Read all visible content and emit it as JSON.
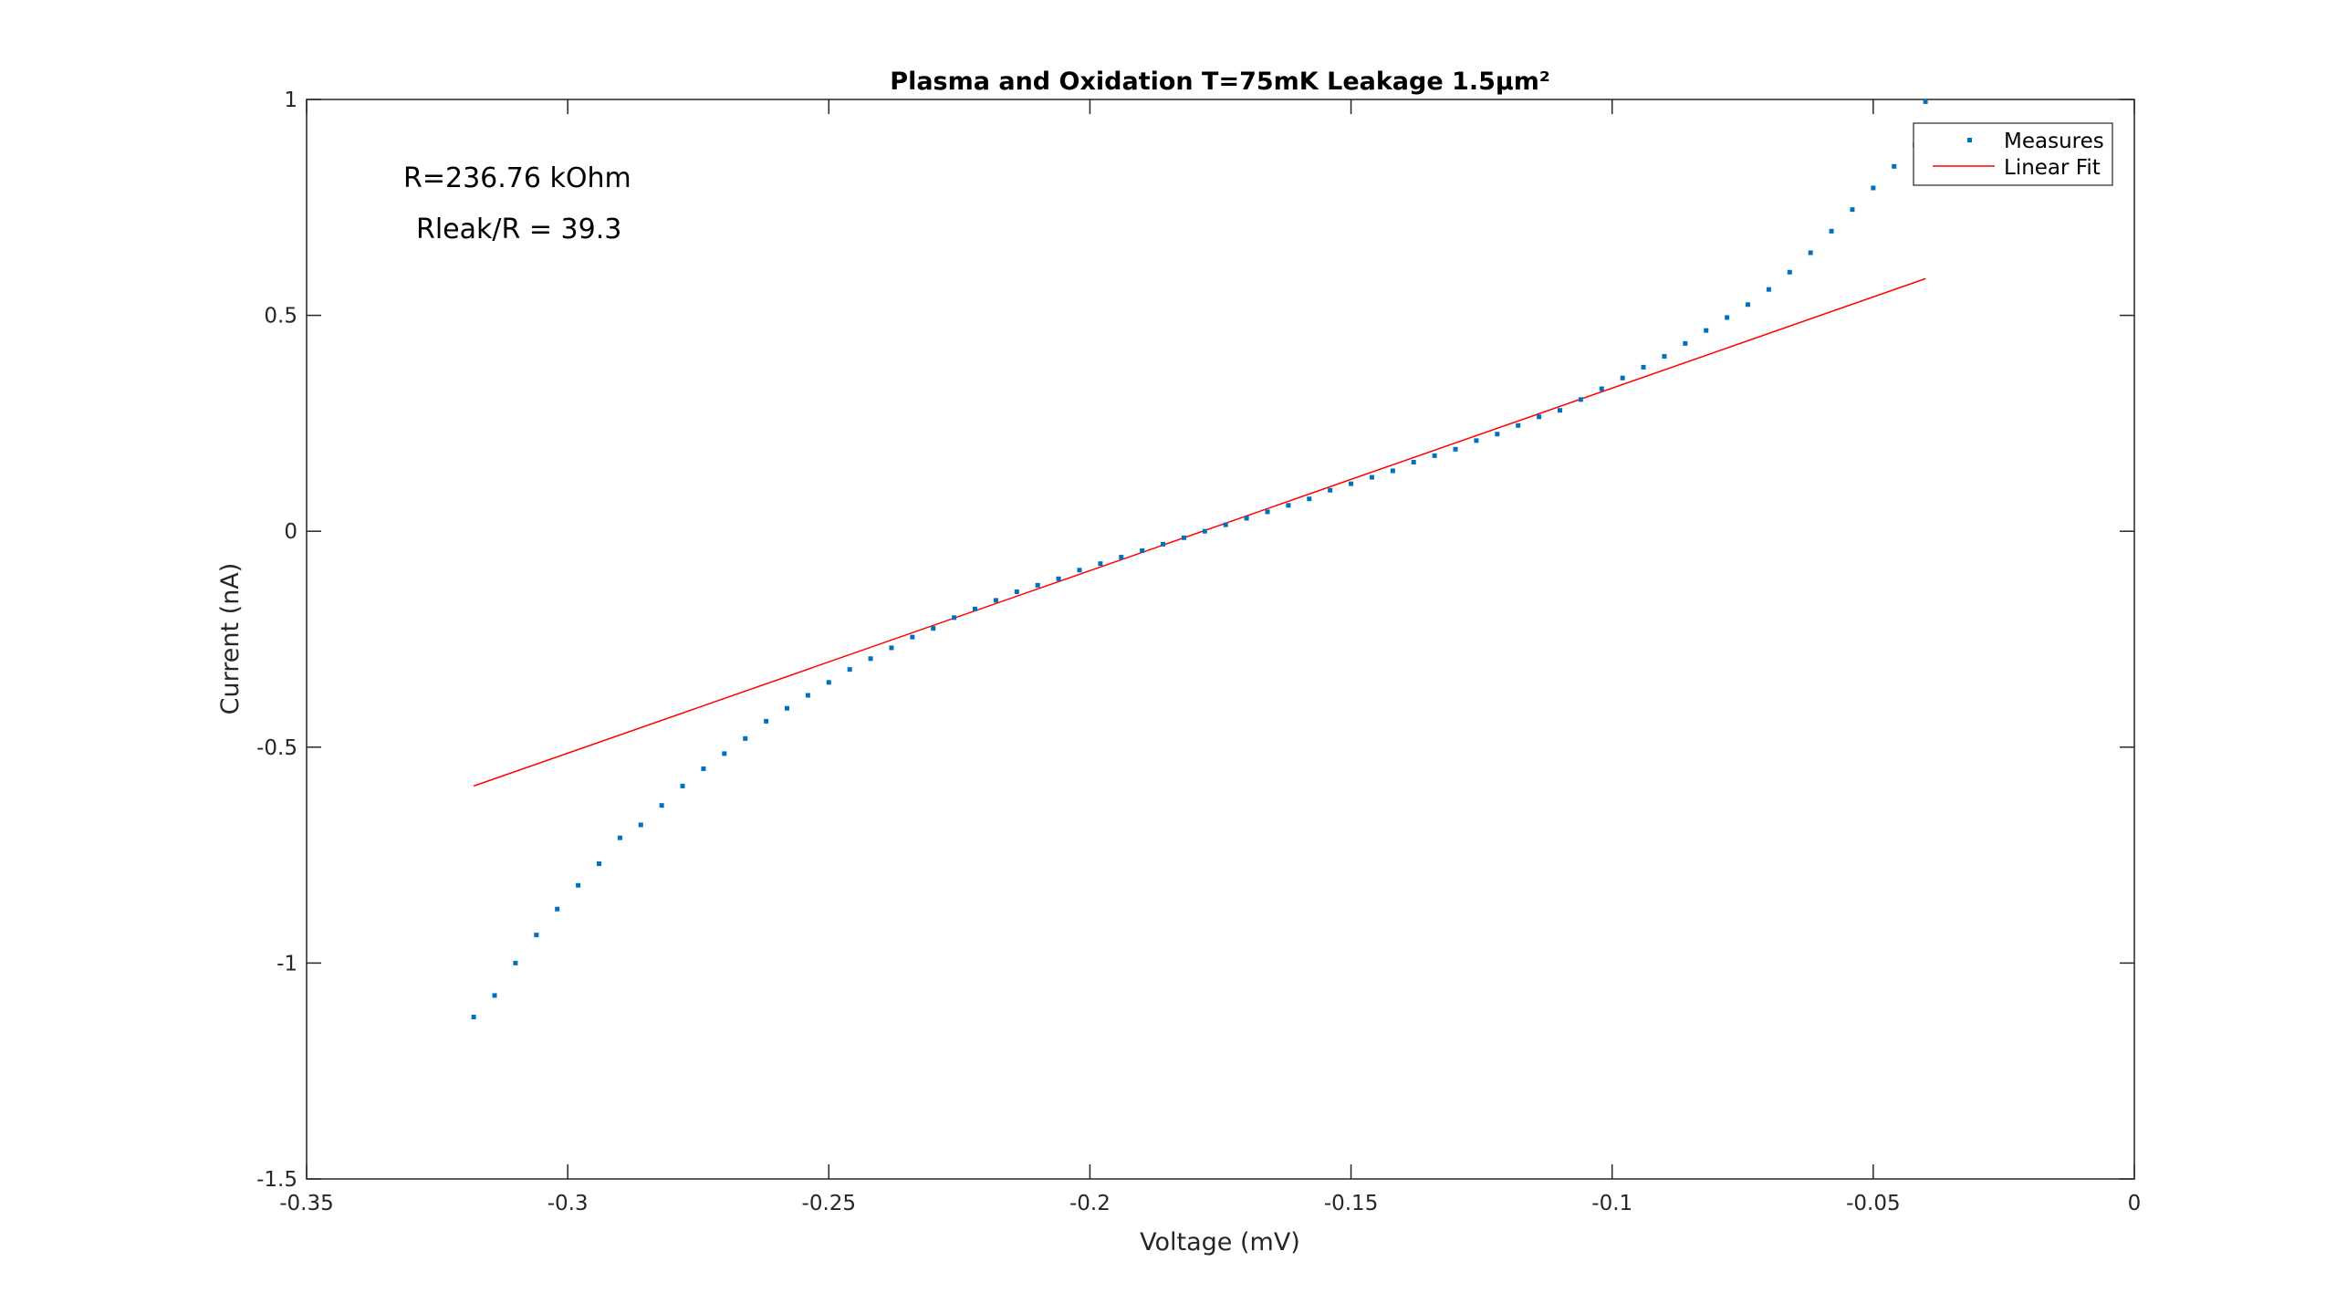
{
  "chart_data": {
    "type": "scatter",
    "title": "Plasma and Oxidation T=75mK Leakage 1.5µm²",
    "xlabel": "Voltage (mV)",
    "ylabel": "Current (nA)",
    "xlim": [
      -0.35,
      0
    ],
    "ylim": [
      -1.5,
      1
    ],
    "xticks": [
      -0.35,
      -0.3,
      -0.25,
      -0.2,
      -0.15,
      -0.1,
      -0.05,
      0
    ],
    "xtick_labels": [
      "-0.35",
      "-0.3",
      "-0.25",
      "-0.2",
      "-0.15",
      "-0.1",
      "-0.05",
      "0"
    ],
    "yticks": [
      -1.5,
      -1,
      -0.5,
      0,
      0.5,
      1
    ],
    "ytick_labels": [
      "-1.5",
      "-1",
      "-0.5",
      "0",
      "0.5",
      "1"
    ],
    "grid": false,
    "legend_position": "top-right",
    "annotations": [
      "R=236.76 kOhm",
      "Rleak/R = 39.3"
    ],
    "series": [
      {
        "name": "Measures",
        "style": "points",
        "color": "#0072BD",
        "x": [
          -0.318,
          -0.314,
          -0.31,
          -0.306,
          -0.302,
          -0.298,
          -0.294,
          -0.29,
          -0.286,
          -0.282,
          -0.278,
          -0.274,
          -0.27,
          -0.266,
          -0.262,
          -0.258,
          -0.254,
          -0.25,
          -0.246,
          -0.242,
          -0.238,
          -0.234,
          -0.23,
          -0.226,
          -0.222,
          -0.218,
          -0.214,
          -0.21,
          -0.206,
          -0.202,
          -0.198,
          -0.194,
          -0.19,
          -0.186,
          -0.182,
          -0.178,
          -0.174,
          -0.17,
          -0.166,
          -0.162,
          -0.158,
          -0.154,
          -0.15,
          -0.146,
          -0.142,
          -0.138,
          -0.134,
          -0.13,
          -0.126,
          -0.122,
          -0.118,
          -0.114,
          -0.11,
          -0.106,
          -0.102,
          -0.098,
          -0.094,
          -0.09,
          -0.086,
          -0.082,
          -0.078,
          -0.074,
          -0.07,
          -0.066,
          -0.062,
          -0.058,
          -0.054,
          -0.05,
          -0.046,
          -0.042,
          -0.04
        ],
        "y": [
          -1.125,
          -1.075,
          -1.0,
          -0.935,
          -0.875,
          -0.82,
          -0.77,
          -0.71,
          -0.68,
          -0.635,
          -0.59,
          -0.55,
          -0.515,
          -0.48,
          -0.44,
          -0.41,
          -0.38,
          -0.35,
          -0.32,
          -0.295,
          -0.27,
          -0.245,
          -0.225,
          -0.2,
          -0.18,
          -0.16,
          -0.14,
          -0.125,
          -0.11,
          -0.09,
          -0.075,
          -0.06,
          -0.045,
          -0.03,
          -0.015,
          0.0,
          0.015,
          0.03,
          0.045,
          0.06,
          0.075,
          0.095,
          0.11,
          0.125,
          0.14,
          0.16,
          0.175,
          0.19,
          0.21,
          0.225,
          0.245,
          0.265,
          0.28,
          0.305,
          0.33,
          0.355,
          0.38,
          0.405,
          0.435,
          0.465,
          0.495,
          0.525,
          0.56,
          0.6,
          0.645,
          0.695,
          0.745,
          0.795,
          0.845,
          0.895,
          0.995
        ]
      },
      {
        "name": "Linear Fit",
        "style": "line",
        "color": "#FF0000",
        "x": [
          -0.318,
          -0.04
        ],
        "y": [
          -0.59,
          0.585
        ]
      }
    ]
  }
}
